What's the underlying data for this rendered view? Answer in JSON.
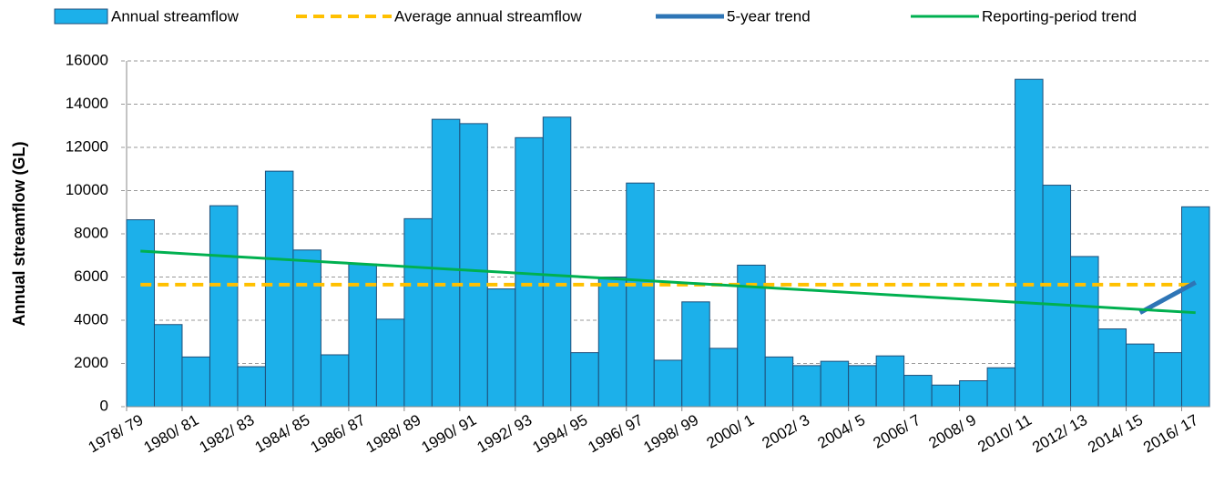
{
  "chart_data": {
    "type": "bar",
    "y_axis_label": "Annual streamflow (GL)",
    "categories": [
      "1978/ 79",
      null,
      "1980/ 81",
      null,
      "1982/ 83",
      null,
      "1984/ 85",
      null,
      "1986/ 87",
      null,
      "1988/ 89",
      null,
      "1990/ 91",
      null,
      "1992/ 93",
      null,
      "1994/ 95",
      null,
      "1996/ 97",
      null,
      "1998/ 99",
      null,
      "2000/ 1",
      null,
      "2002/ 3",
      null,
      "2004/ 5",
      null,
      "2006/ 7",
      null,
      "2008/ 9",
      null,
      "2010/ 11",
      null,
      "2012/ 13",
      null,
      "2014/ 15",
      null,
      "2016/ 17"
    ],
    "series": [
      {
        "name": "Annual streamflow",
        "type": "bar",
        "color": "#1cb0ea",
        "edge_color": "#1f4e79",
        "values": [
          8650,
          3800,
          2300,
          9300,
          1850,
          10900,
          7250,
          2400,
          6600,
          4050,
          8700,
          13300,
          13100,
          5450,
          12450,
          13400,
          2500,
          6000,
          10350,
          2150,
          4850,
          2700,
          6550,
          2300,
          1900,
          2100,
          1900,
          2350,
          1450,
          1000,
          1200,
          1800,
          15150,
          10250,
          6950,
          3600,
          2900,
          2500,
          9250
        ]
      },
      {
        "name": "Average annual streamflow",
        "type": "line",
        "dashed": true,
        "color": "#ffc000",
        "values": [
          5650,
          5650,
          5650,
          5650,
          5650,
          5650,
          5650,
          5650,
          5650,
          5650,
          5650,
          5650,
          5650,
          5650,
          5650,
          5650,
          5650,
          5650,
          5650,
          5650,
          5650,
          5650,
          5650,
          5650,
          5650,
          5650,
          5650,
          5650,
          5650,
          5650,
          5650,
          5650,
          5650,
          5650,
          5650,
          5650,
          5650,
          5650,
          5650
        ]
      },
      {
        "name": "5-year trend",
        "type": "line",
        "dashed": false,
        "color": "#2e75b6",
        "values": [
          null,
          null,
          null,
          null,
          null,
          null,
          null,
          null,
          null,
          null,
          null,
          null,
          null,
          null,
          null,
          null,
          null,
          null,
          null,
          null,
          null,
          null,
          null,
          null,
          null,
          null,
          null,
          null,
          null,
          null,
          null,
          null,
          null,
          null,
          null,
          null,
          4350,
          5050,
          5750
        ]
      },
      {
        "name": "Reporting-period trend",
        "type": "line",
        "dashed": false,
        "color": "#00b050",
        "values": [
          7200,
          7125,
          7050,
          6975,
          6900,
          6825,
          6750,
          6675,
          6600,
          6525,
          6450,
          6375,
          6300,
          6225,
          6150,
          6075,
          6000,
          5925,
          5850,
          5775,
          5700,
          5625,
          5550,
          5475,
          5400,
          5325,
          5250,
          5175,
          5100,
          5025,
          4950,
          4875,
          4800,
          4725,
          4650,
          4575,
          4500,
          4425,
          4350
        ]
      }
    ],
    "ylim": [
      0,
      16000
    ],
    "yticks": [
      0,
      2000,
      4000,
      6000,
      8000,
      10000,
      12000,
      14000,
      16000
    ],
    "grid": true,
    "legend": "top"
  }
}
